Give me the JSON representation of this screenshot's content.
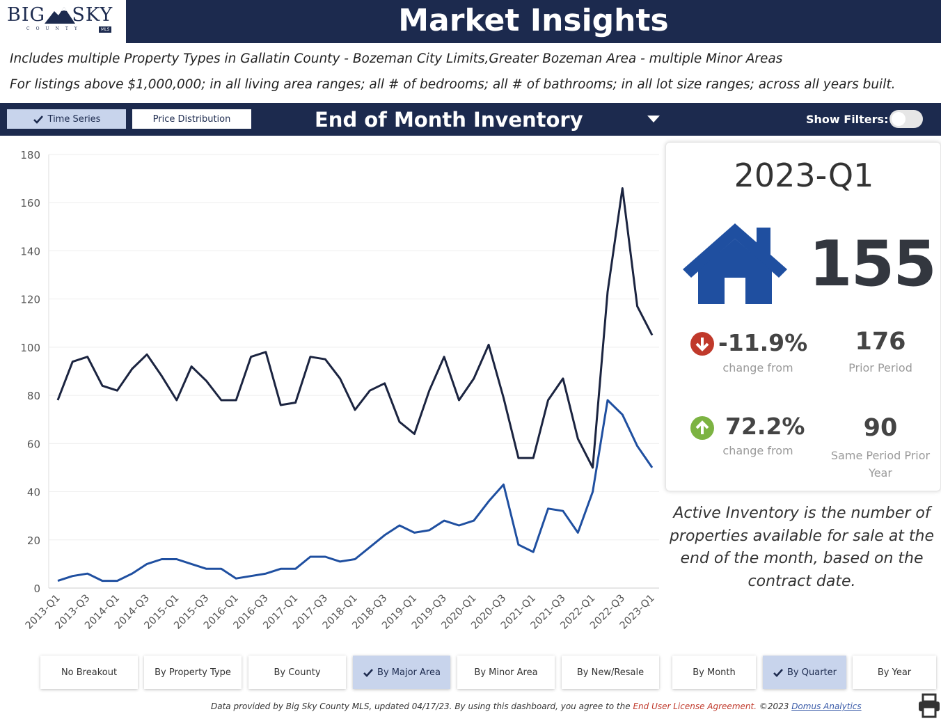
{
  "header": {
    "logo_big": "BIG",
    "logo_sky": "SKY",
    "logo_sub": "COUNTY",
    "logo_mls": "MLS",
    "title": "Market Insights"
  },
  "subtitle_1": "Includes multiple Property Types in Gallatin County - Bozeman City Limits,Greater Bozeman Area - multiple Minor Areas",
  "subtitle_2": "For listings above $1,000,000; in all living area ranges; all # of bedrooms; all # of bathrooms; in all lot size ranges; across all years built.",
  "toolbar": {
    "time_series": "Time Series",
    "price_distribution": "Price Distribution",
    "measure": "End of Month Inventory",
    "show_filters": "Show Filters:"
  },
  "kpi": {
    "period": "2023-Q1",
    "value": "155",
    "change_1": "-11.9%",
    "change_1_label": "change from",
    "prior_value": "176",
    "prior_label": "Prior Period",
    "change_2": "72.2%",
    "change_2_label": "change from",
    "same_period_value": "90",
    "same_period_label": "Same Period Prior Year",
    "down_color": "#c0392b",
    "up_color": "#7cb342"
  },
  "description": "Active Inventory is the number of properties available for sale at the end of the month, based on the contract date.",
  "breakouts": [
    "No Breakout",
    "By Property Type",
    "By County",
    "By Major Area",
    "By Minor Area",
    "By New/Resale",
    "By Month",
    "By Quarter",
    "By Year"
  ],
  "footer": {
    "text_1": "Data provided by Big Sky County MLS, updated 04/17/23.  By using this dashboard, you agree to the ",
    "eula": "End User License Agreement.",
    "text_2": "  ©2023 ",
    "domus": "Domus Analytics"
  },
  "chart_data": {
    "type": "line",
    "ylim": [
      0,
      180
    ],
    "yticks": [
      0,
      20,
      40,
      60,
      80,
      100,
      120,
      140,
      160,
      180
    ],
    "x": [
      "2013-Q1",
      "2013-Q2",
      "2013-Q3",
      "2013-Q4",
      "2014-Q1",
      "2014-Q2",
      "2014-Q3",
      "2014-Q4",
      "2015-Q1",
      "2015-Q2",
      "2015-Q3",
      "2015-Q4",
      "2016-Q1",
      "2016-Q2",
      "2016-Q3",
      "2016-Q4",
      "2017-Q1",
      "2017-Q2",
      "2017-Q3",
      "2017-Q4",
      "2018-Q1",
      "2018-Q2",
      "2018-Q3",
      "2018-Q4",
      "2019-Q1",
      "2019-Q2",
      "2019-Q3",
      "2019-Q4",
      "2020-Q1",
      "2020-Q2",
      "2020-Q3",
      "2020-Q4",
      "2021-Q1",
      "2021-Q2",
      "2021-Q3",
      "2021-Q4",
      "2022-Q1",
      "2022-Q2",
      "2022-Q3",
      "2022-Q4",
      "2023-Q1"
    ],
    "xtick_labels": [
      "2013-Q1",
      "2013-Q3",
      "2014-Q1",
      "2014-Q3",
      "2015-Q1",
      "2015-Q3",
      "2016-Q1",
      "2016-Q3",
      "2017-Q1",
      "2017-Q3",
      "2018-Q1",
      "2018-Q3",
      "2019-Q1",
      "2019-Q3",
      "2020-Q1",
      "2020-Q3",
      "2021-Q1",
      "2021-Q3",
      "2022-Q1",
      "2022-Q3",
      "2023-Q1"
    ],
    "series": [
      {
        "color": "#1b2440",
        "values": [
          78,
          94,
          96,
          84,
          82,
          91,
          97,
          88,
          78,
          92,
          86,
          78,
          78,
          96,
          98,
          76,
          77,
          96,
          95,
          87,
          74,
          82,
          85,
          69,
          64,
          82,
          96,
          78,
          87,
          101,
          79,
          54,
          54,
          78,
          87,
          62,
          50,
          123,
          166,
          117,
          105
        ]
      },
      {
        "color": "#1f4fa0",
        "values": [
          3,
          5,
          6,
          3,
          3,
          6,
          10,
          12,
          12,
          10,
          8,
          8,
          4,
          5,
          6,
          8,
          8,
          13,
          13,
          11,
          12,
          17,
          22,
          26,
          23,
          24,
          28,
          26,
          28,
          36,
          43,
          18,
          15,
          33,
          32,
          23,
          40,
          78,
          72,
          59,
          50
        ]
      }
    ]
  }
}
